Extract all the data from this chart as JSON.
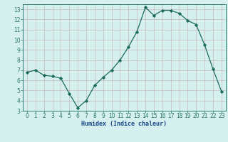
{
  "x": [
    0,
    1,
    2,
    3,
    4,
    5,
    6,
    7,
    8,
    9,
    10,
    11,
    12,
    13,
    14,
    15,
    16,
    17,
    18,
    19,
    20,
    21,
    22,
    23
  ],
  "y": [
    6.8,
    7.0,
    6.5,
    6.4,
    6.2,
    4.7,
    3.3,
    4.0,
    5.5,
    6.3,
    7.0,
    8.0,
    9.3,
    10.8,
    13.2,
    12.4,
    12.9,
    12.9,
    12.6,
    11.9,
    11.5,
    9.5,
    7.1,
    4.9
  ],
  "line_color": "#1a6b5a",
  "marker": "D",
  "markersize": 2.2,
  "linewidth": 0.9,
  "xlabel": "Humidex (Indice chaleur)",
  "xlim": [
    -0.5,
    23.5
  ],
  "ylim": [
    3,
    13.5
  ],
  "yticks": [
    3,
    4,
    5,
    6,
    7,
    8,
    9,
    10,
    11,
    12,
    13
  ],
  "xticks": [
    0,
    1,
    2,
    3,
    4,
    5,
    6,
    7,
    8,
    9,
    10,
    11,
    12,
    13,
    14,
    15,
    16,
    17,
    18,
    19,
    20,
    21,
    22,
    23
  ],
  "bg_color": "#d6f0f0",
  "grid_color": "#c8b8b8",
  "axis_color": "#2a7a6a",
  "tick_color": "#2a7a6a",
  "xlabel_color": "#1a4a8a",
  "xlabel_fontsize": 6.0,
  "tick_fontsize": 5.5
}
